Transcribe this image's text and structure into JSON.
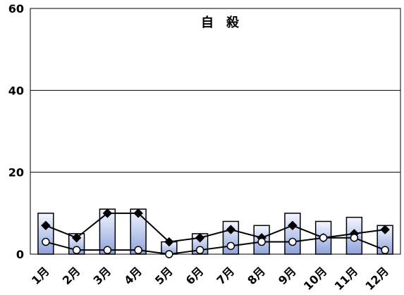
{
  "chart_data": {
    "type": "bar",
    "title": "自　殺",
    "categories": [
      "1月",
      "2月",
      "3月",
      "4月",
      "5月",
      "6月",
      "7月",
      "8月",
      "9月",
      "10月",
      "11月",
      "12月"
    ],
    "series": [
      {
        "values": [
          10,
          5,
          11,
          11,
          3,
          5,
          8,
          7,
          10,
          8,
          9,
          7
        ],
        "mark": "bar"
      },
      {
        "values": [
          7,
          4,
          10,
          10,
          3,
          4,
          6,
          4,
          7,
          4,
          5,
          6
        ],
        "mark": "line-diamond"
      },
      {
        "values": [
          3,
          1,
          1,
          1,
          0,
          1,
          2,
          3,
          3,
          4,
          4,
          1
        ],
        "mark": "line-circle"
      }
    ],
    "y_ticks": [
      "0",
      "20",
      "40",
      "60"
    ],
    "ylim": [
      0,
      60
    ],
    "grid": true,
    "colors": {
      "bar_fill_top": "#f4f7ff",
      "bar_fill_bottom": "#8fa3dc",
      "bar_stroke": "#000000",
      "line": "#000000",
      "grid": "#000000"
    }
  }
}
